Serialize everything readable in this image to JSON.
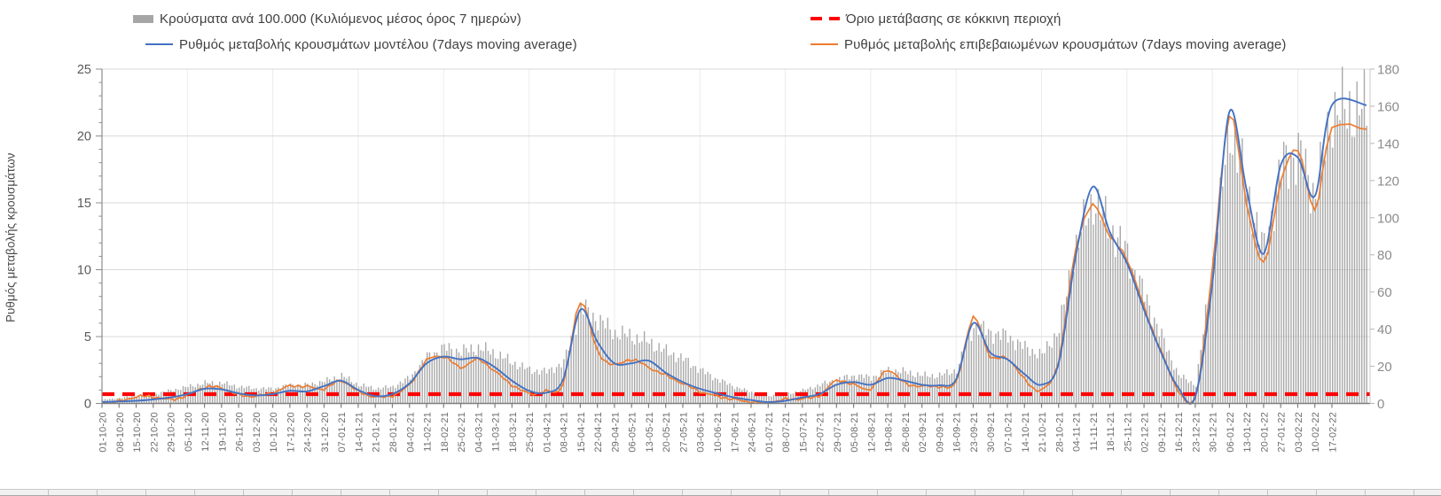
{
  "legend": {
    "position": "top",
    "items": [
      {
        "label": "Κρούσματα ανά 100.000 (Κυλιόμενος μέσος όρος 7 ημερών)",
        "marker": "bar-swatch-icon",
        "color": "#a6a6a6"
      },
      {
        "label": "Ρυθμός μεταβολής κρουσμάτων μοντέλου (7days moving average)",
        "marker": "line-icon",
        "color": "#4472c4"
      },
      {
        "label": "Όριο μετάβασης σε κόκκινη περιοχή",
        "marker": "dashed-line-icon",
        "color": "#ff0000"
      },
      {
        "label": "Ρυθμός μεταβολής επιβεβαιωμένων κρουσμάτων (7days moving average)",
        "marker": "line-icon",
        "color": "#ed7d31"
      }
    ]
  },
  "y_axis_left": {
    "title": "Ρυθμός μεταβολής κρουσμάτων",
    "min": 0,
    "max": 25,
    "ticks": [
      0,
      5,
      10,
      15,
      20,
      25
    ]
  },
  "y_axis_right": {
    "min": 0,
    "max": 180,
    "ticks": [
      0,
      20,
      40,
      60,
      80,
      100,
      120,
      140,
      160,
      180
    ]
  },
  "colors": {
    "bars": "#a9a9a9",
    "model_line": "#4472c4",
    "confirmed_line": "#ed7d31",
    "threshold": "#ff0000",
    "grid": "#d9d9d9",
    "axis": "#8c8c8c",
    "tick_text": "#6b6b6b"
  },
  "chart_data": {
    "type": "combo",
    "legend_position": "top",
    "grid": true,
    "ylim_left": [
      0,
      25
    ],
    "ylim_right": [
      0,
      180
    ],
    "x": [
      "01-10-20",
      "08-10-20",
      "15-10-20",
      "22-10-20",
      "29-10-20",
      "05-11-20",
      "12-11-20",
      "19-11-20",
      "26-11-20",
      "03-12-20",
      "10-12-20",
      "17-12-20",
      "24-12-20",
      "31-12-20",
      "07-01-21",
      "14-01-21",
      "21-01-21",
      "28-01-21",
      "04-02-21",
      "11-02-21",
      "18-02-21",
      "25-02-21",
      "04-03-21",
      "11-03-21",
      "18-03-21",
      "25-03-21",
      "01-04-21",
      "08-04-21",
      "15-04-21",
      "22-04-21",
      "29-04-21",
      "06-05-21",
      "13-05-21",
      "20-05-21",
      "27-05-21",
      "03-06-21",
      "10-06-21",
      "17-06-21",
      "24-06-21",
      "01-07-21",
      "08-07-21",
      "15-07-21",
      "22-07-21",
      "29-07-21",
      "05-08-21",
      "12-08-21",
      "19-08-21",
      "26-08-21",
      "02-09-21",
      "09-09-21",
      "16-09-21",
      "23-09-21",
      "30-09-21",
      "07-10-21",
      "14-10-21",
      "21-10-21",
      "28-10-21",
      "04-11-21",
      "11-11-21",
      "18-11-21",
      "25-11-21",
      "02-12-21",
      "09-12-21",
      "16-12-21",
      "23-12-21",
      "30-12-21",
      "06-01-22",
      "13-01-22",
      "20-01-22",
      "27-01-22",
      "03-02-22",
      "10-02-22",
      "17-02-22"
    ],
    "series": [
      {
        "name": "Κρούσματα ανά 100.000 (Κυλιόμενος μέσος όρος 7 ημερών)",
        "type": "bar",
        "axis": "right",
        "color": "#a9a9a9",
        "sampling": "weekly",
        "values": [
          2,
          3,
          4,
          5,
          7,
          9,
          11,
          11,
          9,
          8,
          8,
          10,
          10,
          12,
          15,
          10,
          8,
          9,
          14,
          25,
          30,
          28,
          30,
          27,
          22,
          18,
          17,
          22,
          52,
          45,
          38,
          36,
          33,
          28,
          24,
          18,
          13,
          9,
          6,
          4,
          5,
          7,
          10,
          13,
          15,
          14,
          18,
          17,
          15,
          15,
          18,
          42,
          38,
          36,
          30,
          26,
          40,
          85,
          110,
          95,
          80,
          58,
          36,
          15,
          10,
          75,
          150,
          115,
          82,
          128,
          135,
          112,
          158
        ]
      },
      {
        "name": "Ρυθμός μεταβολής κρουσμάτων μοντέλου (7days moving average)",
        "type": "line",
        "axis": "left",
        "color": "#4472c4",
        "values": [
          0.1,
          0.15,
          0.2,
          0.3,
          0.45,
          0.7,
          1.1,
          1.05,
          0.75,
          0.6,
          0.7,
          0.95,
          0.9,
          1.3,
          1.7,
          1.0,
          0.55,
          0.7,
          1.5,
          3.0,
          3.5,
          3.3,
          3.4,
          2.7,
          1.7,
          0.95,
          0.8,
          1.8,
          7.0,
          4.6,
          3.0,
          3.0,
          3.2,
          2.3,
          1.6,
          1.1,
          0.75,
          0.45,
          0.25,
          0.1,
          0.2,
          0.45,
          0.7,
          1.4,
          1.6,
          1.4,
          1.9,
          1.7,
          1.4,
          1.35,
          1.8,
          6.0,
          3.8,
          3.3,
          2.2,
          1.4,
          3.0,
          11.0,
          16.2,
          12.8,
          10.5,
          7.0,
          3.8,
          1.2,
          0.5,
          9.0,
          21.8,
          16.0,
          11.2,
          17.8,
          18.4,
          15.5,
          22.3
        ]
      },
      {
        "name": "Ρυθμός μεταβολής επιβεβαιωμένων κρουσμάτων (7days moving average)",
        "type": "line",
        "axis": "left",
        "color": "#ed7d31",
        "values": [
          0.1,
          0.15,
          0.5,
          0.5,
          0.3,
          0.6,
          1.2,
          1.15,
          0.65,
          0.55,
          0.8,
          1.3,
          1.25,
          1.1,
          1.7,
          0.9,
          0.5,
          0.6,
          1.4,
          3.2,
          3.5,
          2.7,
          3.3,
          2.4,
          1.4,
          0.75,
          0.9,
          1.5,
          7.6,
          3.9,
          2.9,
          3.3,
          2.7,
          2.1,
          1.5,
          0.9,
          0.55,
          0.3,
          0.1,
          0.05,
          0.3,
          0.35,
          0.6,
          1.7,
          1.4,
          1.1,
          2.5,
          1.5,
          1.3,
          1.3,
          1.6,
          6.4,
          3.5,
          3.4,
          1.8,
          1.0,
          3.2,
          11.5,
          14.8,
          12.5,
          10.8,
          7.2,
          3.9,
          1.0,
          0.4,
          10.0,
          21.5,
          15.0,
          10.5,
          16.5,
          19.0,
          14.5,
          20.5
        ]
      },
      {
        "name": "Όριο μετάβασης σε κόκκινη περιοχή",
        "type": "threshold",
        "axis": "right",
        "color": "#ff0000",
        "value": 5
      }
    ]
  }
}
